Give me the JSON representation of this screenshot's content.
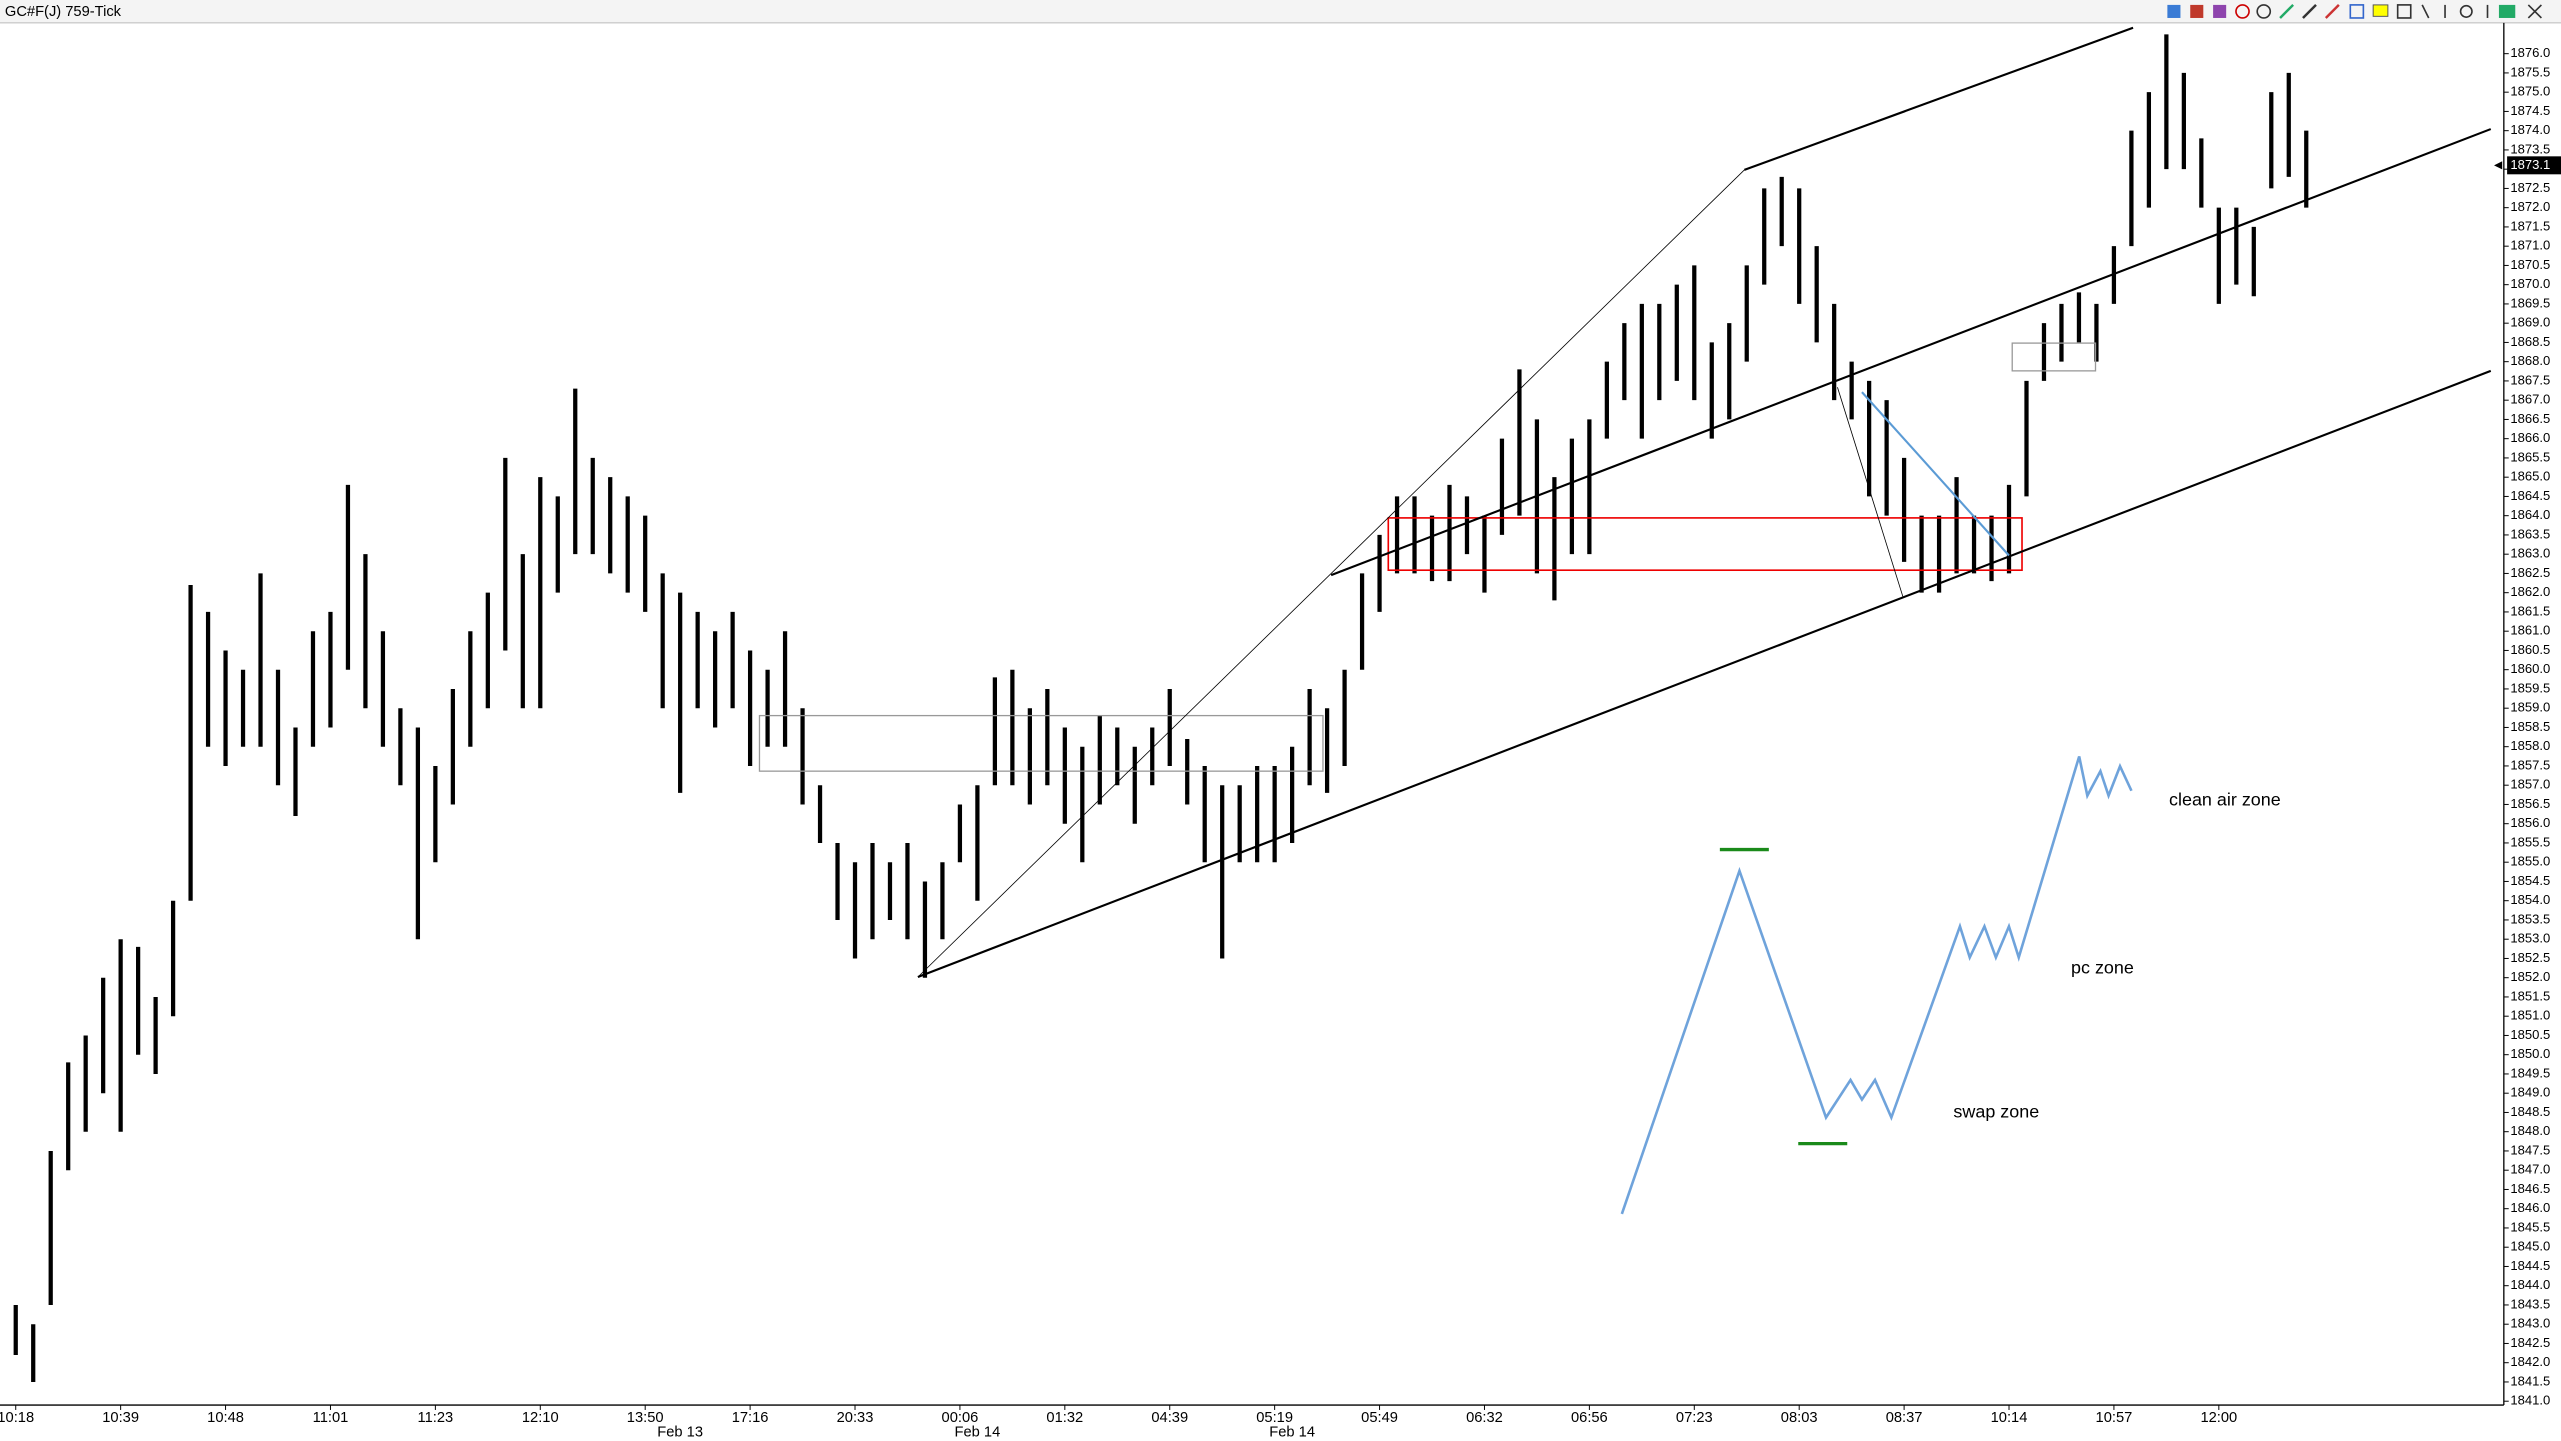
{
  "chart_data": {
    "type": "range-bar",
    "title": "GC#F(J) 759-Tick",
    "last_price": {
      "value": 1873.1,
      "label": "1873.1"
    },
    "ylim": [
      1840.9,
      1876.8
    ],
    "xlim": [
      -0.9,
      142.3
    ],
    "grid": false,
    "color": "#000000",
    "high": [
      1843.5,
      1843,
      1847.5,
      1849.8,
      1850.5,
      1852,
      1853,
      1852.8,
      1851.5,
      1854,
      1862.2,
      1861.5,
      1860.5,
      1860,
      1862.5,
      1860,
      1858.5,
      1861,
      1861.5,
      1864.8,
      1863,
      1861,
      1859,
      1858.5,
      1857.5,
      1859.5,
      1861,
      1862,
      1865.5,
      1863,
      1865,
      1864.5,
      1867.3,
      1865.5,
      1865,
      1864.5,
      1864,
      1862.5,
      1862,
      1861.5,
      1861,
      1861.5,
      1860.5,
      1860,
      1861,
      1859,
      1857,
      1855.5,
      1855,
      1855.5,
      1855,
      1855.5,
      1854.5,
      1855,
      1856.5,
      1857,
      1859.8,
      1860,
      1859,
      1859.5,
      1858.5,
      1858,
      1858.8,
      1858.5,
      1858,
      1858.5,
      1859.5,
      1858.2,
      1857.5,
      1857,
      1857,
      1857.5,
      1857.5,
      1858,
      1859.5,
      1859,
      1860,
      1862.5,
      1863.5,
      1864.5,
      1864.5,
      1864,
      1864.8,
      1864.5,
      1864,
      1866,
      1867.8,
      1866.5,
      1865,
      1866,
      1866.5,
      1868,
      1869,
      1869.5,
      1869.5,
      1870,
      1870.5,
      1868.5,
      1869,
      1870.5,
      1872.5,
      1872.8,
      1872.5,
      1871,
      1869.5,
      1868,
      1867.5,
      1867,
      1865.5,
      1864,
      1864,
      1865,
      1864,
      1864,
      1864.8,
      1867.5,
      1869,
      1869.5,
      1869.8,
      1869.5,
      1871,
      1874,
      1875,
      1876.5,
      1875.5,
      1873.8,
      1872,
      1872,
      1871.5,
      1875,
      1875.5,
      1874
    ],
    "low": [
      1842.2,
      1841.5,
      1843.5,
      1847,
      1848,
      1849,
      1848,
      1850,
      1849.5,
      1851,
      1854,
      1858,
      1857.5,
      1858,
      1858,
      1857,
      1856.2,
      1858,
      1858.5,
      1860,
      1859,
      1858,
      1857,
      1853,
      1855,
      1856.5,
      1858,
      1859,
      1860.5,
      1859,
      1859,
      1862,
      1863,
      1863,
      1862.5,
      1862,
      1861.5,
      1859,
      1856.8,
      1859,
      1858.5,
      1859,
      1857.5,
      1858,
      1858,
      1856.5,
      1855.5,
      1853.5,
      1852.5,
      1853,
      1853.5,
      1853,
      1852,
      1853,
      1855,
      1854,
      1857,
      1857,
      1856.5,
      1857,
      1856,
      1855,
      1856.5,
      1857,
      1856,
      1857,
      1857.5,
      1856.5,
      1855,
      1852.5,
      1855,
      1855,
      1855,
      1855.5,
      1857,
      1856.8,
      1857.5,
      1860,
      1861.5,
      1862.5,
      1862.5,
      1862.3,
      1862.3,
      1863,
      1862,
      1863.5,
      1864,
      1862.5,
      1861.8,
      1863,
      1863,
      1866,
      1867,
      1866,
      1867,
      1867.5,
      1867,
      1866,
      1866.5,
      1868,
      1870,
      1871,
      1869.5,
      1868.5,
      1867,
      1866.5,
      1864.5,
      1864,
      1862.8,
      1862,
      1862,
      1862.5,
      1862.5,
      1862.3,
      1862.5,
      1864.5,
      1867.5,
      1868,
      1868.5,
      1868,
      1869.5,
      1871,
      1872,
      1873,
      1873,
      1872,
      1869.5,
      1870,
      1869.7,
      1872.5,
      1872.8,
      1872
    ],
    "yticks": [
      {
        "value": 1841,
        "label": "1841.0"
      },
      {
        "value": 1841.5,
        "label": "1841.5"
      },
      {
        "value": 1842,
        "label": "1842.0"
      },
      {
        "value": 1842.5,
        "label": "1842.5"
      },
      {
        "value": 1843,
        "label": "1843.0"
      },
      {
        "value": 1843.5,
        "label": "1843.5"
      },
      {
        "value": 1844,
        "label": "1844.0"
      },
      {
        "value": 1844.5,
        "label": "1844.5"
      },
      {
        "value": 1845,
        "label": "1845.0"
      },
      {
        "value": 1845.5,
        "label": "1845.5"
      },
      {
        "value": 1846,
        "label": "1846.0"
      },
      {
        "value": 1846.5,
        "label": "1846.5"
      },
      {
        "value": 1847,
        "label": "1847.0"
      },
      {
        "value": 1847.5,
        "label": "1847.5"
      },
      {
        "value": 1848,
        "label": "1848.0"
      },
      {
        "value": 1848.5,
        "label": "1848.5"
      },
      {
        "value": 1849,
        "label": "1849.0"
      },
      {
        "value": 1849.5,
        "label": "1849.5"
      },
      {
        "value": 1850,
        "label": "1850.0"
      },
      {
        "value": 1850.5,
        "label": "1850.5"
      },
      {
        "value": 1851,
        "label": "1851.0"
      },
      {
        "value": 1851.5,
        "label": "1851.5"
      },
      {
        "value": 1852,
        "label": "1852.0"
      },
      {
        "value": 1852.5,
        "label": "1852.5"
      },
      {
        "value": 1853,
        "label": "1853.0"
      },
      {
        "value": 1853.5,
        "label": "1853.5"
      },
      {
        "value": 1854,
        "label": "1854.0"
      },
      {
        "value": 1854.5,
        "label": "1854.5"
      },
      {
        "value": 1855,
        "label": "1855.0"
      },
      {
        "value": 1855.5,
        "label": "1855.5"
      },
      {
        "value": 1856,
        "label": "1856.0"
      },
      {
        "value": 1856.5,
        "label": "1856.5"
      },
      {
        "value": 1857,
        "label": "1857.0"
      },
      {
        "value": 1857.5,
        "label": "1857.5"
      },
      {
        "value": 1858,
        "label": "1858.0"
      },
      {
        "value": 1858.5,
        "label": "1858.5"
      },
      {
        "value": 1859,
        "label": "1859.0"
      },
      {
        "value": 1859.5,
        "label": "1859.5"
      },
      {
        "value": 1860,
        "label": "1860.0"
      },
      {
        "value": 1860.5,
        "label": "1860.5"
      },
      {
        "value": 1861,
        "label": "1861.0"
      },
      {
        "value": 1861.5,
        "label": "1861.5"
      },
      {
        "value": 1862,
        "label": "1862.0"
      },
      {
        "value": 1862.5,
        "label": "1862.5"
      },
      {
        "value": 1863,
        "label": "1863.0"
      },
      {
        "value": 1863.5,
        "label": "1863.5"
      },
      {
        "value": 1864,
        "label": "1864.0"
      },
      {
        "value": 1864.5,
        "label": "1864.5"
      },
      {
        "value": 1865,
        "label": "1865.0"
      },
      {
        "value": 1865.5,
        "label": "1865.5"
      },
      {
        "value": 1866,
        "label": "1866.0"
      },
      {
        "value": 1866.5,
        "label": "1866.5"
      },
      {
        "value": 1867,
        "label": "1867.0"
      },
      {
        "value": 1867.5,
        "label": "1867.5"
      },
      {
        "value": 1868,
        "label": "1868.0"
      },
      {
        "value": 1868.5,
        "label": "1868.5"
      },
      {
        "value": 1869,
        "label": "1869.0"
      },
      {
        "value": 1869.5,
        "label": "1869.5"
      },
      {
        "value": 1870,
        "label": "1870.0"
      },
      {
        "value": 1870.5,
        "label": "1870.5"
      },
      {
        "value": 1871,
        "label": "1871.0"
      },
      {
        "value": 1871.5,
        "label": "1871.5"
      },
      {
        "value": 1872,
        "label": "1872.0"
      },
      {
        "value": 1872.5,
        "label": "1872.5"
      },
      {
        "value": 1873,
        "label": "1873.0"
      },
      {
        "value": 1873.5,
        "label": "1873.5"
      },
      {
        "value": 1874,
        "label": "1874.0"
      },
      {
        "value": 1874.5,
        "label": "1874.5"
      },
      {
        "value": 1875,
        "label": "1875.0"
      },
      {
        "value": 1875.5,
        "label": "1875.5"
      },
      {
        "value": 1876,
        "label": "1876.0"
      }
    ],
    "xticks": [
      {
        "value": 0,
        "label": "10:18"
      },
      {
        "value": 6,
        "label": "10:39"
      },
      {
        "value": 12,
        "label": "10:48"
      },
      {
        "value": 18,
        "label": "11:01"
      },
      {
        "value": 24,
        "label": "11:23"
      },
      {
        "value": 30,
        "label": "12:10"
      },
      {
        "value": 36,
        "label": "13:50"
      },
      {
        "value": 42,
        "label": "17:16"
      },
      {
        "value": 48,
        "label": "20:33"
      },
      {
        "value": 54,
        "label": "00:06"
      },
      {
        "value": 60,
        "label": "01:32"
      },
      {
        "value": 66,
        "label": "04:39"
      },
      {
        "value": 72,
        "label": "05:19"
      },
      {
        "value": 78,
        "label": "05:49"
      },
      {
        "value": 84,
        "label": "06:32"
      },
      {
        "value": 90,
        "label": "06:56"
      },
      {
        "value": 96,
        "label": "07:23"
      },
      {
        "value": 102,
        "label": "08:03"
      },
      {
        "value": 108,
        "label": "08:37"
      },
      {
        "value": 114,
        "label": "10:14"
      },
      {
        "value": 120,
        "label": "10:57"
      },
      {
        "value": 126,
        "label": "12:00"
      }
    ],
    "date_labels": [
      {
        "value": 38,
        "label": "Feb 13"
      },
      {
        "value": 55,
        "label": "Feb 14"
      },
      {
        "value": 73,
        "label": "Feb 14"
      }
    ],
    "annotations": [
      "clean air zone",
      "pc zone",
      "swap zone"
    ]
  }
}
